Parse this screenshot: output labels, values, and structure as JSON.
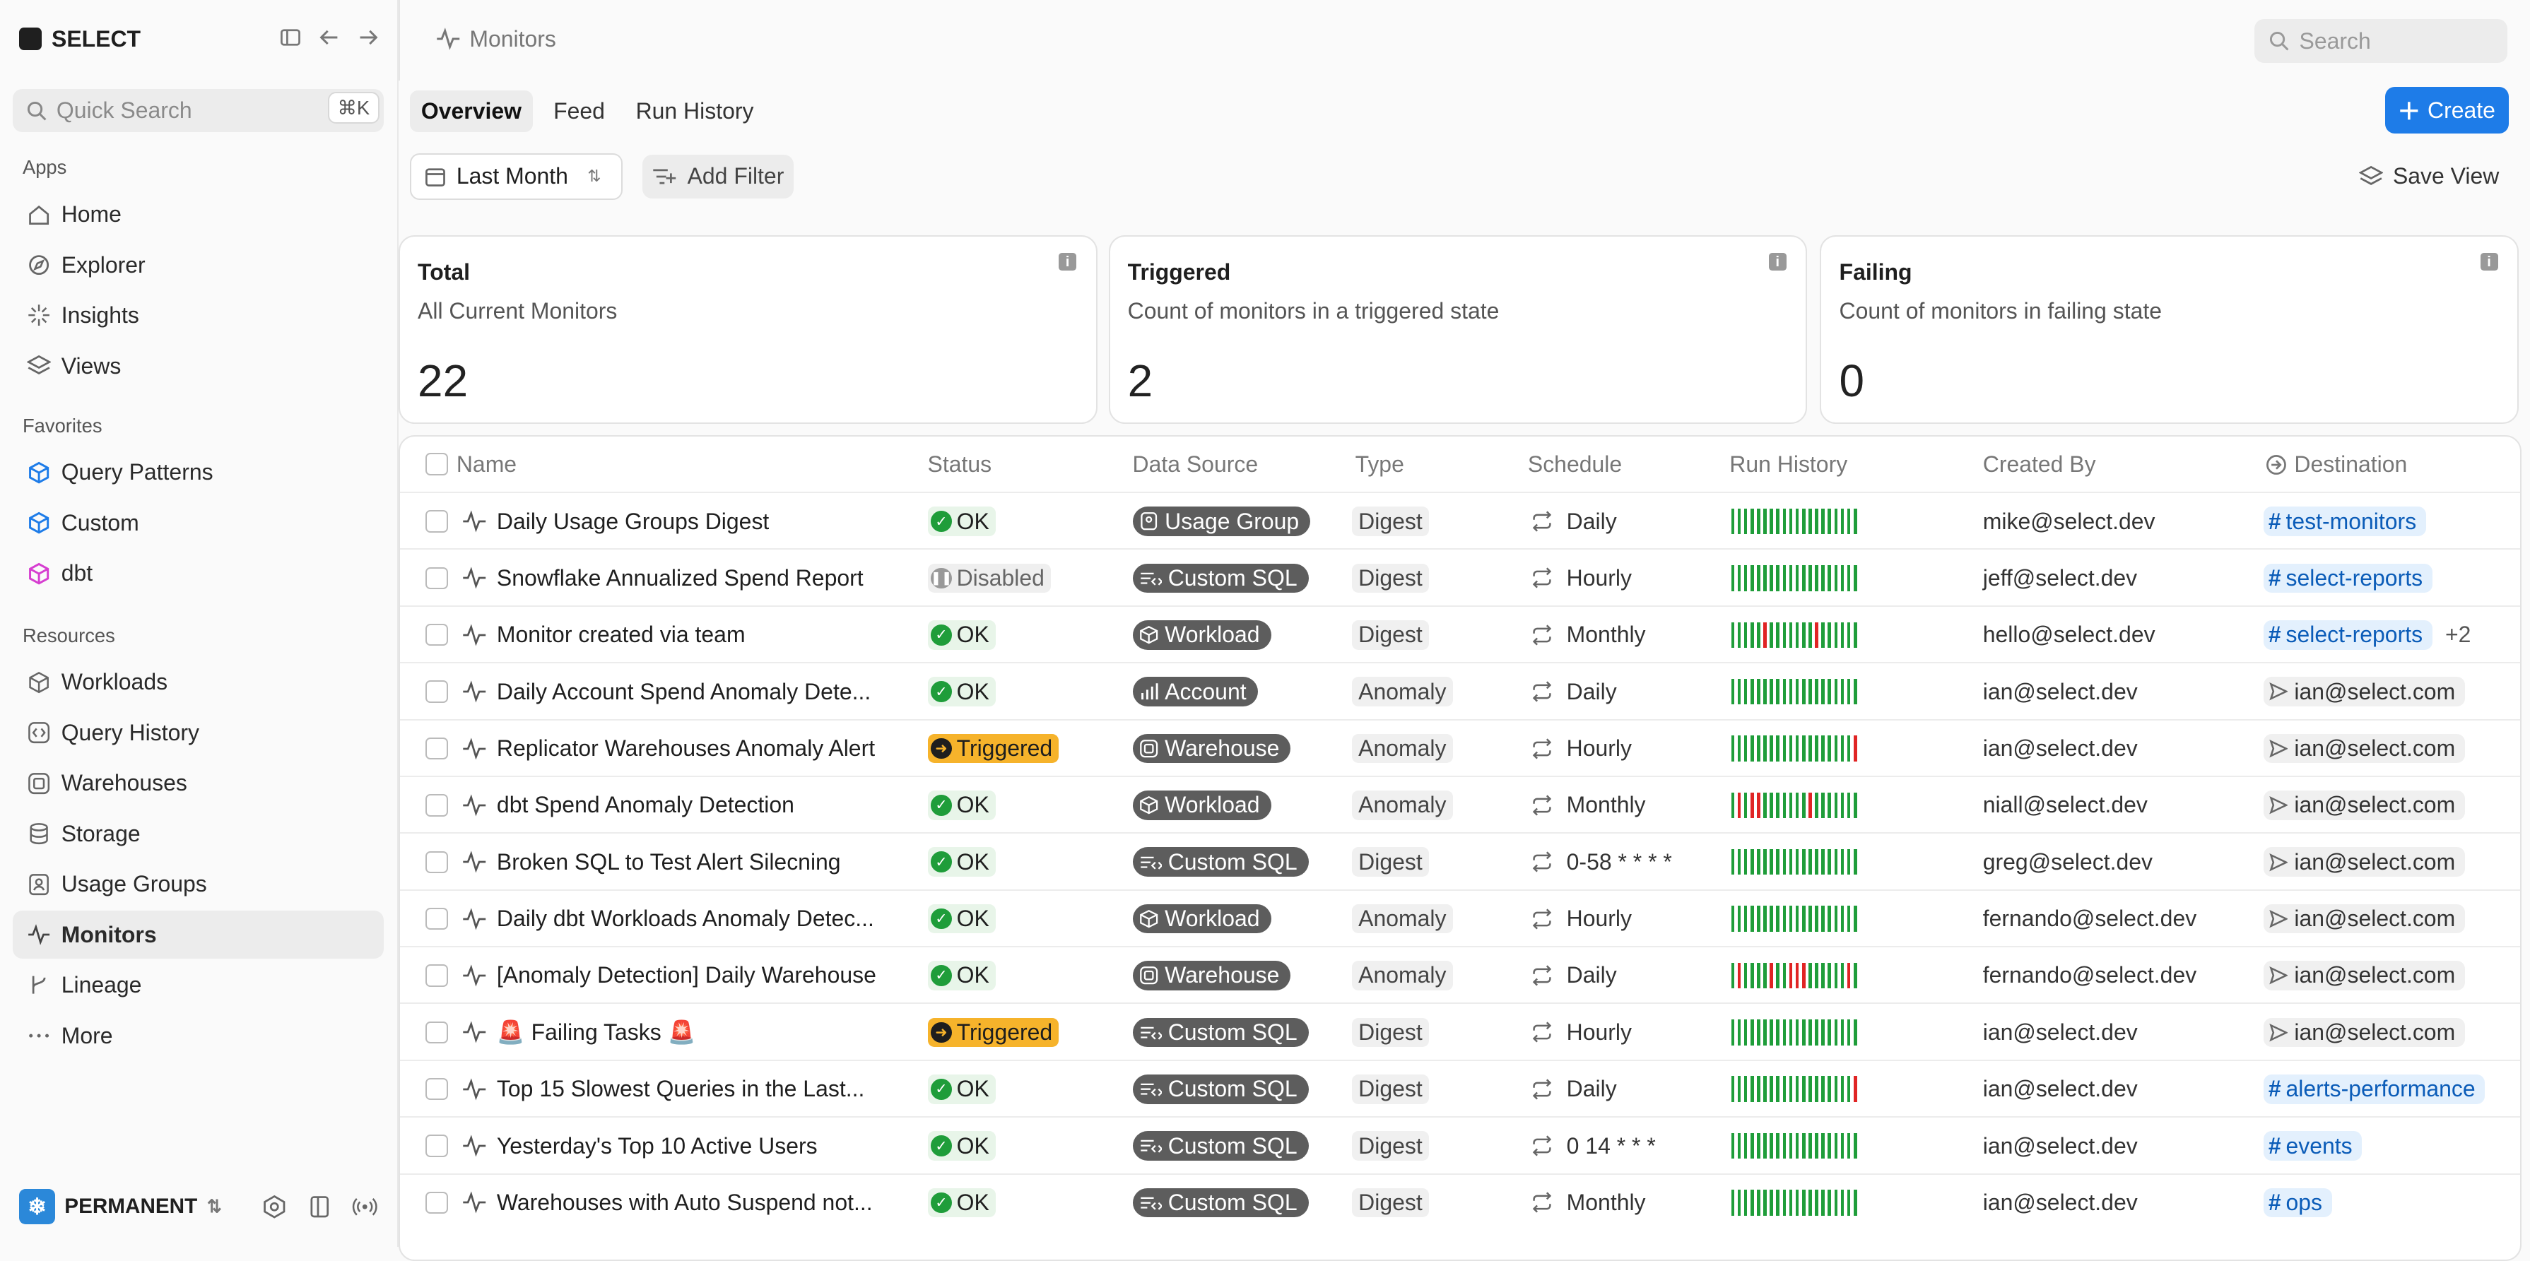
{
  "app": {
    "brand": "SELECT"
  },
  "sidebar": {
    "quick_search": {
      "placeholder": "Quick Search",
      "shortcut": "⌘K"
    },
    "sections": {
      "apps": "Apps",
      "favorites": "Favorites",
      "resources": "Resources"
    },
    "apps": [
      {
        "label": "Home",
        "icon": "home-icon"
      },
      {
        "label": "Explorer",
        "icon": "compass-icon"
      },
      {
        "label": "Insights",
        "icon": "sparkle-icon"
      },
      {
        "label": "Views",
        "icon": "layers-icon"
      }
    ],
    "favorites": [
      {
        "label": "Query Patterns",
        "icon": "cube-icon"
      },
      {
        "label": "Custom",
        "icon": "cube-icon"
      },
      {
        "label": "dbt",
        "icon": "cube-icon"
      }
    ],
    "resources": [
      {
        "label": "Workloads",
        "icon": "box-icon"
      },
      {
        "label": "Query History",
        "icon": "code-icon"
      },
      {
        "label": "Warehouses",
        "icon": "warehouse-icon"
      },
      {
        "label": "Storage",
        "icon": "database-icon"
      },
      {
        "label": "Usage Groups",
        "icon": "badge-icon"
      },
      {
        "label": "Monitors",
        "icon": "pulse-icon",
        "active": true
      },
      {
        "label": "Lineage",
        "icon": "branch-icon"
      },
      {
        "label": "More",
        "icon": "dots-icon"
      }
    ],
    "workspace": "PERMANENT"
  },
  "header": {
    "breadcrumb": "Monitors",
    "search_placeholder": "Search",
    "tabs": [
      "Overview",
      "Feed",
      "Run History"
    ],
    "create_label": "Create"
  },
  "filters": {
    "range": "Last Month",
    "add_filter": "Add Filter",
    "save_view": "Save View"
  },
  "cards": [
    {
      "title": "Total",
      "subtitle": "All Current Monitors",
      "value": "22"
    },
    {
      "title": "Triggered",
      "subtitle": "Count of monitors in a triggered state",
      "value": "2"
    },
    {
      "title": "Failing",
      "subtitle": "Count of monitors in failing state",
      "value": "0"
    }
  ],
  "table": {
    "columns": [
      "Name",
      "Status",
      "Data Source",
      "Type",
      "Schedule",
      "Run History",
      "Created By",
      "Destination"
    ],
    "rows": [
      {
        "name": "Daily Usage Groups Digest",
        "status": "OK",
        "source": "Usage Group",
        "type": "Digest",
        "schedule": "Daily",
        "hist": "gggggggggggggggggggg",
        "creator": "mike@select.dev",
        "dest": "test-monitors",
        "dest_kind": "slack",
        "extra": ""
      },
      {
        "name": "Snowflake Annualized Spend Report",
        "status": "Disabled",
        "source": "Custom SQL",
        "type": "Digest",
        "schedule": "Hourly",
        "hist": "gggggggggggggggggggg",
        "creator": "jeff@select.dev",
        "dest": "select-reports",
        "dest_kind": "slack",
        "extra": ""
      },
      {
        "name": "Monitor created via team",
        "status": "OK",
        "source": "Workload",
        "type": "Digest",
        "schedule": "Monthly",
        "hist": "gggggrgggggggrgggggg",
        "creator": "hello@select.dev",
        "dest": "select-reports",
        "dest_kind": "slack",
        "extra": "+2"
      },
      {
        "name": "Daily Account Spend Anomaly Dete...",
        "status": "OK",
        "source": "Account",
        "type": "Anomaly",
        "schedule": "Daily",
        "hist": "gggggggggggggggggggg",
        "creator": "ian@select.dev",
        "dest": "ian@select.com",
        "dest_kind": "email",
        "extra": ""
      },
      {
        "name": "Replicator Warehouses Anomaly Alert",
        "status": "Triggered",
        "source": "Warehouse",
        "type": "Anomaly",
        "schedule": "Hourly",
        "hist": "gggggggggggggggggggr",
        "creator": "ian@select.dev",
        "dest": "ian@select.com",
        "dest_kind": "email",
        "extra": ""
      },
      {
        "name": "dbt Spend Anomaly Detection",
        "status": "OK",
        "source": "Workload",
        "type": "Anomaly",
        "schedule": "Monthly",
        "hist": "grgrrgggggggrggggggg",
        "creator": "niall@select.dev",
        "dest": "ian@select.com",
        "dest_kind": "email",
        "extra": ""
      },
      {
        "name": "Broken SQL to Test Alert Silecning",
        "status": "OK",
        "source": "Custom SQL",
        "type": "Digest",
        "schedule": "0-58 * * * *",
        "hist": "gggggggggggggggggggg",
        "creator": "greg@select.dev",
        "dest": "ian@select.com",
        "dest_kind": "email",
        "extra": ""
      },
      {
        "name": "Daily dbt Workloads Anomaly Detec...",
        "status": "OK",
        "source": "Workload",
        "type": "Anomaly",
        "schedule": "Hourly",
        "hist": "gggggggggggggggggggg",
        "creator": "fernando@select.dev",
        "dest": "ian@select.com",
        "dest_kind": "email",
        "extra": ""
      },
      {
        "name": "[Anomaly Detection] Daily Warehouse",
        "status": "OK",
        "source": "Warehouse",
        "type": "Anomaly",
        "schedule": "Daily",
        "hist": "grggggrggrrrggggggrg",
        "creator": "fernando@select.dev",
        "dest": "ian@select.com",
        "dest_kind": "email",
        "extra": ""
      },
      {
        "name": "🚨 Failing Tasks 🚨",
        "status": "Triggered",
        "source": "Custom SQL",
        "type": "Digest",
        "schedule": "Hourly",
        "hist": "gggggggggggggggggggg",
        "creator": "ian@select.dev",
        "dest": "ian@select.com",
        "dest_kind": "email",
        "extra": ""
      },
      {
        "name": "Top 15 Slowest Queries in the Last...",
        "status": "OK",
        "source": "Custom SQL",
        "type": "Digest",
        "schedule": "Daily",
        "hist": "gggggggggggggggggggr",
        "creator": "ian@select.dev",
        "dest": "alerts-performance",
        "dest_kind": "slack",
        "extra": ""
      },
      {
        "name": "Yesterday's Top 10 Active Users",
        "status": "OK",
        "source": "Custom SQL",
        "type": "Digest",
        "schedule": "0 14 * * *",
        "hist": "gggggggggggggggggggg",
        "creator": "ian@select.dev",
        "dest": "events",
        "dest_kind": "slack",
        "extra": ""
      },
      {
        "name": "Warehouses with Auto Suspend not...",
        "status": "OK",
        "source": "Custom SQL",
        "type": "Digest",
        "schedule": "Monthly",
        "hist": "gggggggggggggggggggg",
        "creator": "ian@select.dev",
        "dest": "ops",
        "dest_kind": "slack",
        "extra": ""
      }
    ]
  },
  "colors": {
    "accent": "#1e7ce8",
    "ok": "#1f9d3a",
    "triggered": "#f6b32b",
    "fail_bar": "#e02424",
    "pass_bar": "#1f9d3a"
  }
}
